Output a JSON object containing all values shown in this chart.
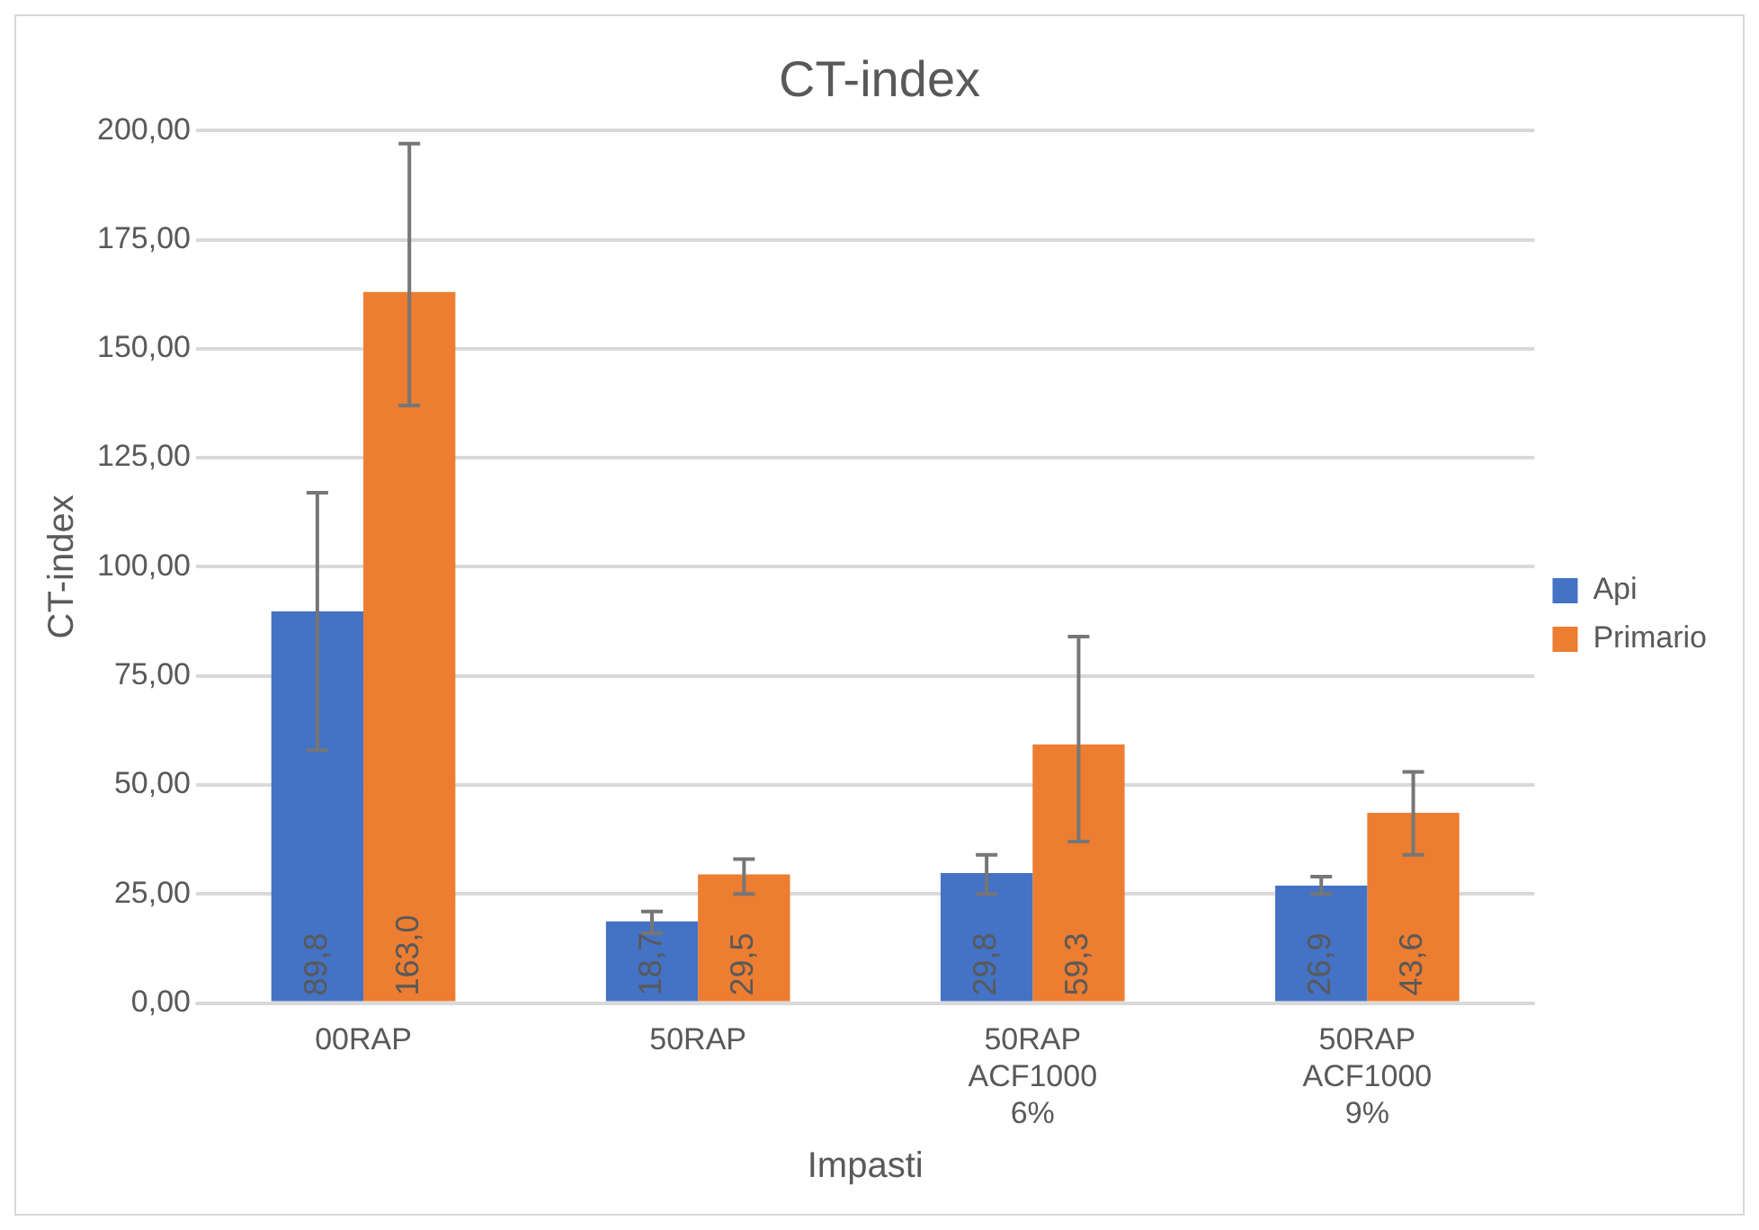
{
  "chart_data": {
    "type": "bar",
    "title": "CT-index",
    "xlabel": "Impasti",
    "ylabel": "CT-index",
    "categories": [
      "00RAP",
      "50RAP",
      "50RAP ACF1000 6%",
      "50RAP ACF1000 9%"
    ],
    "series": [
      {
        "name": "Api",
        "color": "#4472c4",
        "values": [
          89.8,
          18.7,
          29.8,
          26.9
        ],
        "value_labels": [
          "89,8",
          "18,7",
          "29,8",
          "26,9"
        ],
        "errors": [
          [
            58,
            117
          ],
          [
            16,
            21
          ],
          [
            25,
            34
          ],
          [
            25,
            29
          ]
        ]
      },
      {
        "name": "Primario",
        "color": "#ed7d31",
        "values": [
          163.0,
          29.5,
          59.3,
          43.6
        ],
        "value_labels": [
          "163,0",
          "29,5",
          "59,3",
          "43,6"
        ],
        "errors": [
          [
            137,
            197
          ],
          [
            25,
            33
          ],
          [
            37,
            84
          ],
          [
            34,
            53
          ]
        ]
      }
    ],
    "ylim": [
      0,
      200
    ],
    "yticks": [
      {
        "value": 0,
        "label": "0,00"
      },
      {
        "value": 25,
        "label": "25,00"
      },
      {
        "value": 50,
        "label": "50,00"
      },
      {
        "value": 75,
        "label": "75,00"
      },
      {
        "value": 100,
        "label": "100,00"
      },
      {
        "value": 125,
        "label": "125,00"
      },
      {
        "value": 150,
        "label": "150,00"
      },
      {
        "value": 175,
        "label": "175,00"
      },
      {
        "value": 200,
        "label": "200,00"
      }
    ],
    "grid": "y",
    "legend": "right"
  }
}
